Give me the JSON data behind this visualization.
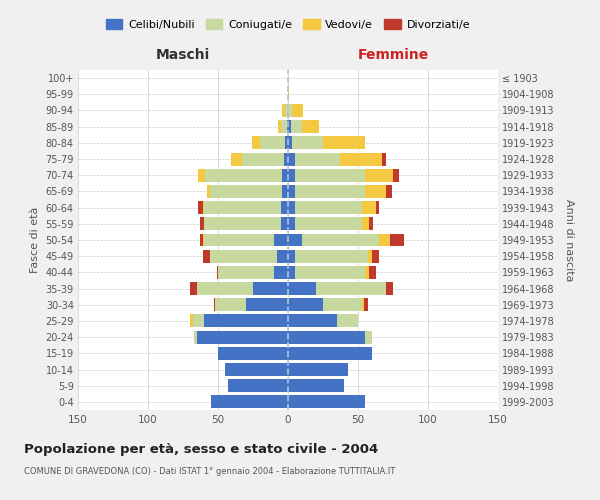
{
  "age_groups": [
    "0-4",
    "5-9",
    "10-14",
    "15-19",
    "20-24",
    "25-29",
    "30-34",
    "35-39",
    "40-44",
    "45-49",
    "50-54",
    "55-59",
    "60-64",
    "65-69",
    "70-74",
    "75-79",
    "80-84",
    "85-89",
    "90-94",
    "95-99",
    "100+"
  ],
  "birth_years": [
    "1999-2003",
    "1994-1998",
    "1989-1993",
    "1984-1988",
    "1979-1983",
    "1974-1978",
    "1969-1973",
    "1964-1968",
    "1959-1963",
    "1954-1958",
    "1949-1953",
    "1944-1948",
    "1939-1943",
    "1934-1938",
    "1929-1933",
    "1924-1928",
    "1919-1923",
    "1914-1918",
    "1909-1913",
    "1904-1908",
    "≤ 1903"
  ],
  "maschi": {
    "celibi": [
      55,
      43,
      45,
      50,
      65,
      60,
      30,
      25,
      10,
      8,
      10,
      5,
      5,
      4,
      4,
      3,
      2,
      1,
      0,
      0,
      0
    ],
    "coniugati": [
      0,
      0,
      0,
      0,
      2,
      8,
      22,
      40,
      40,
      48,
      50,
      55,
      55,
      52,
      55,
      30,
      18,
      4,
      2,
      0,
      0
    ],
    "vedovi": [
      0,
      0,
      0,
      0,
      0,
      2,
      0,
      0,
      0,
      0,
      1,
      0,
      1,
      2,
      5,
      8,
      6,
      2,
      2,
      0,
      0
    ],
    "divorziati": [
      0,
      0,
      0,
      0,
      0,
      0,
      1,
      5,
      1,
      5,
      2,
      3,
      3,
      0,
      0,
      0,
      0,
      0,
      0,
      0,
      0
    ]
  },
  "femmine": {
    "nubili": [
      55,
      40,
      43,
      60,
      55,
      35,
      25,
      20,
      5,
      5,
      10,
      5,
      5,
      5,
      5,
      5,
      3,
      2,
      0,
      0,
      0
    ],
    "coniugate": [
      0,
      0,
      0,
      0,
      5,
      15,
      28,
      50,
      50,
      52,
      55,
      48,
      48,
      50,
      50,
      32,
      22,
      8,
      3,
      0,
      0
    ],
    "vedove": [
      0,
      0,
      0,
      0,
      0,
      0,
      1,
      0,
      3,
      3,
      8,
      5,
      10,
      15,
      20,
      30,
      30,
      12,
      8,
      1,
      0
    ],
    "divorziate": [
      0,
      0,
      0,
      0,
      0,
      0,
      3,
      5,
      5,
      5,
      10,
      3,
      2,
      4,
      4,
      3,
      0,
      0,
      0,
      0,
      0
    ]
  },
  "colors": {
    "celibi": "#4472C4",
    "coniugati": "#c8d9a0",
    "vedovi": "#f5c842",
    "divorziati": "#c0392b"
  },
  "title": "Popolazione per età, sesso e stato civile - 2004",
  "subtitle": "COMUNE DI GRAVEDONA (CO) - Dati ISTAT 1° gennaio 2004 - Elaborazione TUTTITALIA.IT",
  "xlabel_left": "Maschi",
  "xlabel_right": "Femmine",
  "ylabel_left": "Fasce di età",
  "ylabel_right": "Anni di nascita",
  "xlim": 150,
  "legend_labels": [
    "Celibi/Nubili",
    "Coniugati/e",
    "Vedovi/e",
    "Divorziati/e"
  ],
  "bg_color": "#f0f0f0",
  "plot_bg": "#ffffff",
  "grid_color": "#cccccc"
}
